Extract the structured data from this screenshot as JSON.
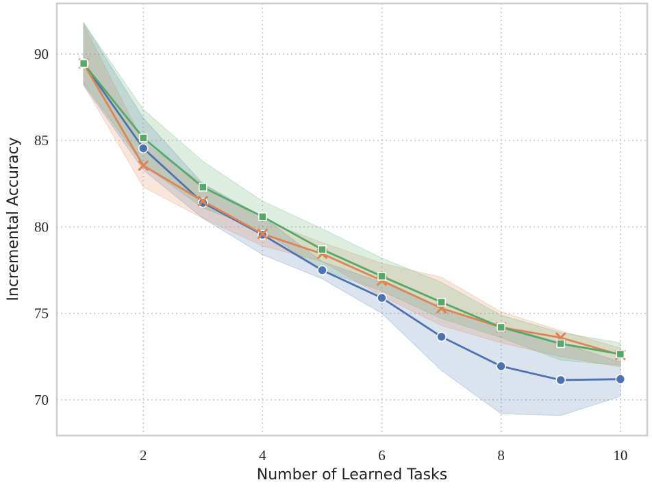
{
  "chart_data": {
    "type": "line",
    "x_label": "Number of Learned Tasks",
    "y_label": "Incremental Accuracy",
    "x": [
      1,
      2,
      3,
      4,
      5,
      6,
      7,
      8,
      9,
      10
    ],
    "xlim": [
      0.55,
      10.45
    ],
    "ylim": [
      67.94,
      92.93
    ],
    "xticks": [
      2,
      4,
      6,
      8,
      10
    ],
    "yticks": [
      70,
      75,
      80,
      85,
      90
    ],
    "grid": true,
    "series": [
      {
        "color": "#4c72b0",
        "marker": "circle",
        "values": [
          89.45,
          84.55,
          81.4,
          79.55,
          77.5,
          75.9,
          73.65,
          71.95,
          71.15,
          71.2
        ],
        "lower": [
          88.2,
          83.3,
          80.5,
          78.4,
          77.0,
          75.0,
          71.7,
          69.2,
          69.1,
          70.2
        ],
        "upper": [
          91.8,
          86.3,
          82.5,
          80.6,
          78.0,
          76.8,
          75.3,
          74.3,
          73.3,
          72.2
        ]
      },
      {
        "color": "#dd8452",
        "marker": "x",
        "values": [
          89.45,
          83.55,
          81.5,
          79.6,
          78.45,
          76.9,
          75.3,
          74.2,
          73.6,
          72.6
        ],
        "lower": [
          88.2,
          82.3,
          80.5,
          78.9,
          78.0,
          76.0,
          74.3,
          73.3,
          72.5,
          71.9
        ],
        "upper": [
          91.7,
          84.9,
          82.5,
          80.4,
          79.1,
          77.9,
          77.1,
          75.1,
          74.0,
          73.0
        ]
      },
      {
        "color": "#55a868",
        "marker": "square",
        "values": [
          89.45,
          85.15,
          82.3,
          80.6,
          78.7,
          77.15,
          75.65,
          74.2,
          73.25,
          72.65
        ],
        "lower": [
          88.3,
          83.6,
          81.1,
          79.8,
          77.5,
          76.3,
          74.7,
          73.6,
          72.3,
          72.0
        ],
        "upper": [
          91.8,
          86.8,
          83.8,
          81.5,
          79.9,
          78.2,
          76.8,
          74.9,
          73.9,
          73.3
        ]
      }
    ]
  }
}
